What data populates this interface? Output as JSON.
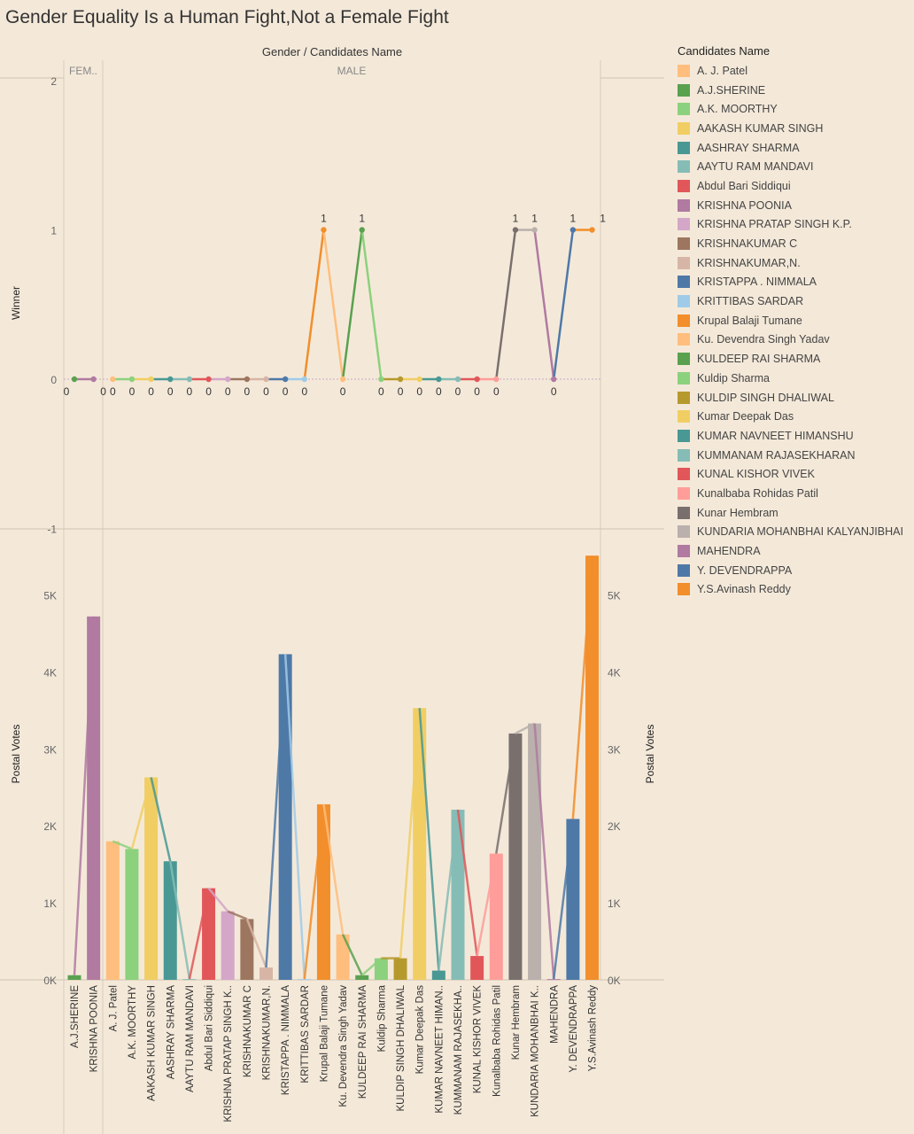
{
  "title": "Gender Equality Is a Human Fight,Not a Female Fight",
  "header": "Gender / Candidates Name",
  "legend_title": "Candidates Name",
  "legend": [
    {
      "name": "A. J. Patel",
      "color": "#ffbe7d"
    },
    {
      "name": "A.J.SHERINE",
      "color": "#59a14f"
    },
    {
      "name": "A.K. MOORTHY",
      "color": "#8cd17d"
    },
    {
      "name": "AAKASH KUMAR SINGH",
      "color": "#f1ce63"
    },
    {
      "name": "AASHRAY SHARMA",
      "color": "#499894"
    },
    {
      "name": "AAYTU RAM MANDAVI",
      "color": "#86bcb6"
    },
    {
      "name": "Abdul Bari Siddiqui",
      "color": "#e15759"
    },
    {
      "name": "KRISHNA POONIA",
      "color": "#b07aa1"
    },
    {
      "name": "KRISHNA PRATAP SINGH K.P.",
      "color": "#d4a6c8"
    },
    {
      "name": "KRISHNAKUMAR C",
      "color": "#9d7660"
    },
    {
      "name": "KRISHNAKUMAR,N.",
      "color": "#d7b5a6"
    },
    {
      "name": "KRISTAPPA . NIMMALA",
      "color": "#4e79a7"
    },
    {
      "name": "KRITTIBAS SARDAR",
      "color": "#a0cbe8"
    },
    {
      "name": "Krupal Balaji Tumane",
      "color": "#f28e2b"
    },
    {
      "name": "Ku. Devendra Singh Yadav",
      "color": "#ffbe7d"
    },
    {
      "name": "KULDEEP RAI SHARMA",
      "color": "#59a14f"
    },
    {
      "name": "Kuldip Sharma",
      "color": "#8cd17d"
    },
    {
      "name": "KULDIP SINGH DHALIWAL",
      "color": "#b6992d"
    },
    {
      "name": "Kumar Deepak Das",
      "color": "#f1ce63"
    },
    {
      "name": "KUMAR NAVNEET HIMANSHU",
      "color": "#499894"
    },
    {
      "name": "KUMMANAM RAJASEKHARAN",
      "color": "#86bcb6"
    },
    {
      "name": "KUNAL KISHOR VIVEK",
      "color": "#e15759"
    },
    {
      "name": "Kunalbaba Rohidas Patil",
      "color": "#ff9d9a"
    },
    {
      "name": "Kunar Hembram",
      "color": "#79706e"
    },
    {
      "name": "KUNDARIA MOHANBHAI KALYANJIBHAI",
      "color": "#bab0ac"
    },
    {
      "name": "MAHENDRA",
      "color": "#b07aa1"
    },
    {
      "name": "Y. DEVENDRAPPA",
      "color": "#4e79a7"
    },
    {
      "name": "Y.S.Avinash Reddy",
      "color": "#f28e2b"
    }
  ],
  "chart_data": [
    {
      "type": "line",
      "ylabel": "Winner",
      "ylim": [
        -1,
        2
      ],
      "yticks": [
        "-1",
        "0",
        "1",
        "2"
      ],
      "columns": [
        "FEM..",
        "MALE"
      ],
      "x": [
        "A.J.SHERINE",
        "KRISHNA POONIA",
        "A. J. Patel",
        "A.K. MOORTHY",
        "AAKASH KUMAR SINGH",
        "AASHRAY SHARMA",
        "AAYTU RAM MANDAVI",
        "Abdul Bari Siddiqui",
        "KRISHNA PRATAP SINGH K..",
        "KRISHNAKUMAR C",
        "KRISHNAKUMAR,N.",
        "KRISTAPPA . NIMMALA",
        "KRITTIBAS SARDAR",
        "Krupal Balaji Tumane",
        "Ku. Devendra Singh Yadav",
        "KULDEEP RAI SHARMA",
        "Kuldip Sharma",
        "KULDIP SINGH DHALIWAL",
        "Kumar Deepak Das",
        "KUMAR NAVNEET HIMAN..",
        "KUMMANAM RAJASEKHA..",
        "KUNAL KISHOR VIVEK",
        "Kunalbaba Rohidas Patil",
        "Kunar Hembram",
        "KUNDARIA MOHANBHAI K..",
        "MAHENDRA",
        "Y. DEVENDRAPPA",
        "Y.S.Avinash Reddy"
      ],
      "values": [
        0,
        0,
        0,
        0,
        0,
        0,
        0,
        0,
        0,
        0,
        0,
        0,
        0,
        1,
        0,
        1,
        0,
        0,
        0,
        0,
        0,
        0,
        0,
        1,
        1,
        0,
        1,
        1
      ]
    },
    {
      "type": "bar",
      "ylabel": "Postal Votes",
      "ylim": [
        0,
        5500
      ],
      "yticks": [
        "0K",
        "1K",
        "2K",
        "3K",
        "4K",
        "5K"
      ],
      "values": [
        60,
        4720,
        1800,
        1700,
        2630,
        1540,
        10,
        1190,
        890,
        790,
        160,
        4230,
        10,
        2280,
        590,
        60,
        280,
        280,
        3530,
        120,
        2210,
        310,
        1640,
        3200,
        3330,
        10,
        2090,
        5510
      ]
    }
  ]
}
